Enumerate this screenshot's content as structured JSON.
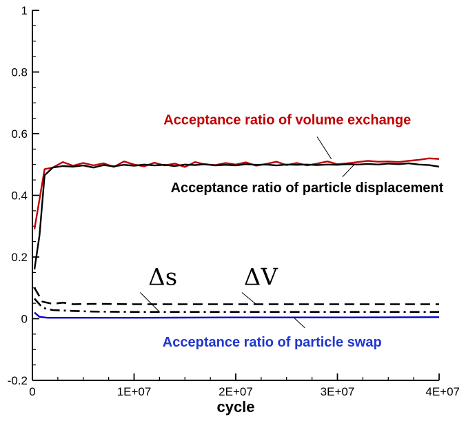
{
  "chart_data": {
    "type": "line",
    "title": "",
    "xlabel": "cycle",
    "ylabel": "",
    "xlim": [
      0,
      40000000
    ],
    "ylim": [
      -0.2,
      1
    ],
    "x_ticks": [
      {
        "value": 0,
        "label": "0"
      },
      {
        "value": 10000000,
        "label": "1E+07"
      },
      {
        "value": 20000000,
        "label": "2E+07"
      },
      {
        "value": 30000000,
        "label": "3E+07"
      },
      {
        "value": 40000000,
        "label": "4E+07"
      }
    ],
    "y_ticks": [
      {
        "value": -0.2,
        "label": "-0.2"
      },
      {
        "value": 0,
        "label": "0"
      },
      {
        "value": 0.2,
        "label": "0.2"
      },
      {
        "value": 0.4,
        "label": "0.4"
      },
      {
        "value": 0.6,
        "label": "0.6"
      },
      {
        "value": 0.8,
        "label": "0.8"
      },
      {
        "value": 1,
        "label": "1"
      }
    ],
    "series": [
      {
        "name": "Acceptance ratio of volume exchange",
        "color": "#c00000",
        "style": "solid",
        "x": [
          200000,
          1200000,
          2000000,
          3000000,
          4000000,
          5000000,
          6000000,
          7000000,
          8000000,
          9000000,
          10000000,
          11000000,
          12000000,
          13000000,
          14000000,
          15000000,
          16000000,
          17000000,
          18000000,
          19000000,
          20000000,
          21000000,
          22000000,
          23000000,
          24000000,
          25000000,
          26000000,
          27000000,
          28000000,
          29000000,
          30000000,
          31000000,
          32000000,
          33000000,
          34000000,
          35000000,
          36000000,
          37000000,
          38000000,
          39000000,
          40000000
        ],
        "values": [
          0.29,
          0.485,
          0.49,
          0.508,
          0.496,
          0.505,
          0.497,
          0.504,
          0.492,
          0.51,
          0.5,
          0.494,
          0.506,
          0.497,
          0.503,
          0.492,
          0.508,
          0.5,
          0.498,
          0.505,
          0.5,
          0.507,
          0.496,
          0.502,
          0.509,
          0.498,
          0.505,
          0.497,
          0.503,
          0.51,
          0.501,
          0.504,
          0.508,
          0.512,
          0.509,
          0.51,
          0.508,
          0.512,
          0.515,
          0.52,
          0.518
        ]
      },
      {
        "name": "Acceptance ratio of particle displacement",
        "color": "#000000",
        "style": "solid",
        "x": [
          200000,
          700000,
          1200000,
          2000000,
          3000000,
          4000000,
          5000000,
          6000000,
          7000000,
          8000000,
          9000000,
          10000000,
          11000000,
          12000000,
          13000000,
          14000000,
          15000000,
          16000000,
          17000000,
          18000000,
          19000000,
          20000000,
          21000000,
          22000000,
          23000000,
          24000000,
          25000000,
          26000000,
          27000000,
          28000000,
          29000000,
          30000000,
          31000000,
          32000000,
          33000000,
          34000000,
          35000000,
          36000000,
          37000000,
          38000000,
          39000000,
          40000000
        ],
        "values": [
          0.16,
          0.27,
          0.465,
          0.49,
          0.495,
          0.493,
          0.497,
          0.49,
          0.498,
          0.494,
          0.499,
          0.496,
          0.5,
          0.497,
          0.499,
          0.495,
          0.5,
          0.498,
          0.501,
          0.497,
          0.499,
          0.497,
          0.501,
          0.499,
          0.5,
          0.497,
          0.5,
          0.499,
          0.5,
          0.498,
          0.5,
          0.499,
          0.501,
          0.5,
          0.502,
          0.5,
          0.503,
          0.501,
          0.504,
          0.5,
          0.498,
          0.493
        ]
      },
      {
        "name": "ΔV",
        "color": "#000000",
        "style": "dashed",
        "x": [
          200000,
          1000000,
          2000000,
          3000000,
          4000000,
          6000000,
          10000000,
          20000000,
          30000000,
          40000000
        ],
        "values": [
          0.1,
          0.055,
          0.048,
          0.052,
          0.047,
          0.048,
          0.047,
          0.047,
          0.047,
          0.047
        ]
      },
      {
        "name": "Δs",
        "color": "#000000",
        "style": "dashdot",
        "x": [
          200000,
          1000000,
          2000000,
          4000000,
          6000000,
          10000000,
          20000000,
          30000000,
          40000000
        ],
        "values": [
          0.065,
          0.035,
          0.028,
          0.025,
          0.023,
          0.022,
          0.022,
          0.022,
          0.022
        ]
      },
      {
        "name": "Acceptance ratio of particle swap",
        "color": "#0000cc",
        "style": "solid",
        "x": [
          200000,
          700000,
          1500000,
          5000000,
          10000000,
          20000000,
          30000000,
          40000000
        ],
        "values": [
          0.02,
          0.006,
          0.003,
          0.003,
          0.003,
          0.004,
          0.004,
          0.005
        ]
      }
    ],
    "annotations": [
      {
        "text": "Acceptance ratio of volume exchange",
        "color": "#c00000",
        "label_x": 12900000,
        "label_y": 0.63,
        "leader_from": [
          28000000,
          0.59
        ],
        "leader_to": [
          29400000,
          0.518
        ]
      },
      {
        "text": "Acceptance ratio of particle displacement",
        "color": "#000000",
        "label_x": 13600000,
        "label_y": 0.41,
        "leader_from": [
          30500000,
          0.46
        ],
        "leader_to": [
          31600000,
          0.498
        ]
      },
      {
        "text": "Acceptance ratio of particle swap",
        "color": "#1f35d1",
        "label_x": 12800000,
        "label_y": -0.09,
        "leader_from": [
          26800000,
          -0.03
        ],
        "leader_to": [
          25700000,
          0.004
        ]
      },
      {
        "text": "Δs",
        "color": "#000000",
        "label_x": 11400000,
        "label_y": 0.11,
        "leader_from": [
          10600000,
          0.085
        ],
        "leader_to": [
          12500000,
          0.022
        ]
      },
      {
        "text": "ΔV",
        "color": "#000000",
        "label_x": 20800000,
        "label_y": 0.11,
        "leader_from": [
          20600000,
          0.085
        ],
        "leader_to": [
          22000000,
          0.047
        ]
      }
    ]
  }
}
